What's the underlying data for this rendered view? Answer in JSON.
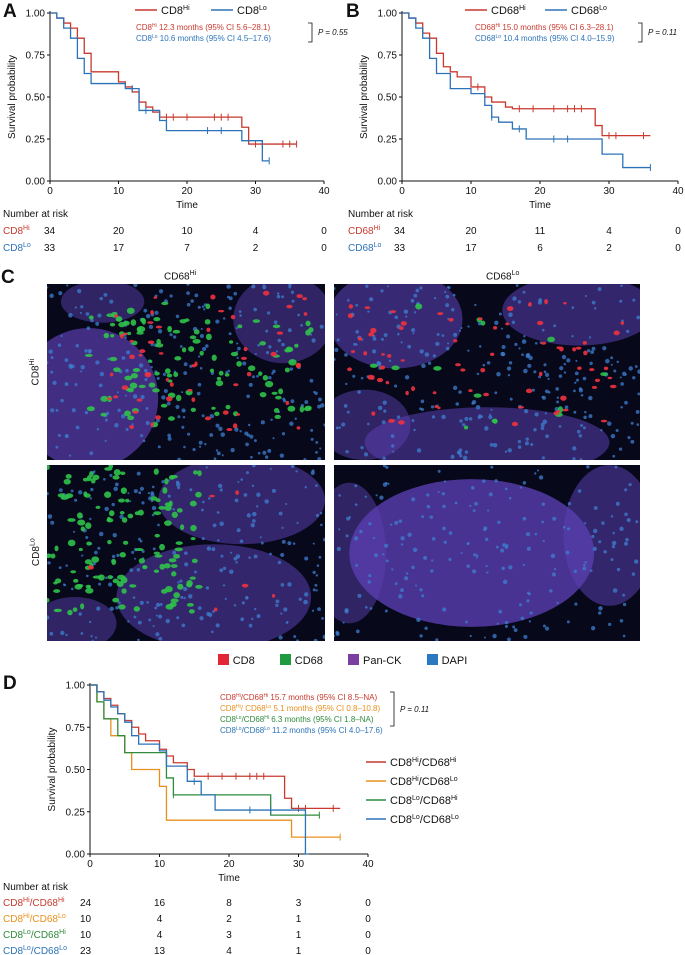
{
  "panels": {
    "A": {
      "letter": "A",
      "xlabel": "Time",
      "ylabel": "Survival probability",
      "xticks": [
        "0",
        "10",
        "20",
        "30",
        "40"
      ],
      "yticks": [
        "0.00",
        "0.25",
        "0.50",
        "0.75",
        "1.00"
      ],
      "legend": [
        {
          "base": "CD8",
          "sup": "Hi",
          "color": "#c9392e"
        },
        {
          "base": "CD8",
          "sup": "Lo",
          "color": "#2b73b9"
        }
      ],
      "annotations": [
        {
          "base": "CD8",
          "sup": "Hi",
          "text": " 12.3 months (95% CI 5.6–28.1)",
          "color": "#c9392e"
        },
        {
          "base": "CD8",
          "sup": "Lo",
          "text": " 10.6 months (95% CI 4.5–17.6)",
          "color": "#2b73b9"
        }
      ],
      "pvalue": "P = 0.55",
      "risk_title": "Number at risk",
      "risk_rows": [
        {
          "base": "CD8",
          "sup": "Hi",
          "color": "#c9392e",
          "values": [
            "34",
            "20",
            "10",
            "4",
            "0"
          ]
        },
        {
          "base": "CD8",
          "sup": "Lo",
          "color": "#2b73b9",
          "values": [
            "33",
            "17",
            "7",
            "2",
            "0"
          ]
        }
      ]
    },
    "B": {
      "letter": "B",
      "xlabel": "Time",
      "ylabel": "Survival probability",
      "xticks": [
        "0",
        "10",
        "20",
        "30",
        "40"
      ],
      "yticks": [
        "0.00",
        "0.25",
        "0.50",
        "0.75",
        "1.00"
      ],
      "legend": [
        {
          "base": "CD68",
          "sup": "Hi",
          "color": "#c9392e"
        },
        {
          "base": "CD68",
          "sup": "Lo",
          "color": "#2b73b9"
        }
      ],
      "annotations": [
        {
          "base": "CD68",
          "sup": "Hi",
          "text": " 15.0 months (95% CI 6.3–28.1)",
          "color": "#c9392e"
        },
        {
          "base": "CD68",
          "sup": "Lo",
          "text": " 10.4 months (95% CI 4.0–15.9)",
          "color": "#2b73b9"
        }
      ],
      "pvalue": "P = 0.11",
      "risk_title": "Number at risk",
      "risk_rows": [
        {
          "base": "CD68",
          "sup": "Hi",
          "color": "#c9392e",
          "values": [
            "34",
            "20",
            "11",
            "4",
            "0"
          ]
        },
        {
          "base": "CD68",
          "sup": "Lo",
          "color": "#2b73b9",
          "values": [
            "33",
            "17",
            "6",
            "2",
            "0"
          ]
        }
      ]
    },
    "C": {
      "letter": "C",
      "col_labels": [
        {
          "base": "CD68",
          "sup": "Hi"
        },
        {
          "base": "CD68",
          "sup": "Lo"
        }
      ],
      "row_labels": [
        {
          "base": "CD8",
          "sup": "Hi"
        },
        {
          "base": "CD8",
          "sup": "Lo"
        }
      ],
      "legend": [
        {
          "label": "CD8",
          "color": "#e32636"
        },
        {
          "label": "CD68",
          "color": "#1f9a3f"
        },
        {
          "label": "Pan-CK",
          "color": "#7b3fa0"
        },
        {
          "label": "DAPI",
          "color": "#2a78c2"
        }
      ]
    },
    "D": {
      "letter": "D",
      "xlabel": "Time",
      "ylabel": "Survival probability",
      "xticks": [
        "0",
        "10",
        "20",
        "30",
        "40"
      ],
      "yticks": [
        "0.00",
        "0.25",
        "0.50",
        "0.75",
        "1.00"
      ],
      "annotations": [
        {
          "label": "CD8Hi/CD68Hi",
          "text": " 15.7 months (95% CI 8.5–NA)",
          "color": "#c9392e"
        },
        {
          "label": "CD8Hi/ CD68Lo",
          "text": " 5.1 months (95% CI 0.8–10.8)",
          "color": "#e8901f"
        },
        {
          "label": "CD8Lo/CD68Hi",
          "text": " 6.3 months (95% CI 1.8–NA)",
          "color": "#2f8a3c"
        },
        {
          "label": "CD8Lo/CD68Lo",
          "text": " 11.2 months (95% CI 4.0–17.6)",
          "color": "#2b73b9"
        }
      ],
      "pvalue": "P = 0.11",
      "legend": [
        {
          "label": "CD8Hi/CD68Hi",
          "color": "#c9392e"
        },
        {
          "label": "CD8Hi/CD68Lo",
          "color": "#e8901f"
        },
        {
          "label": "CD8Lo/CD68Hi",
          "color": "#2f8a3c"
        },
        {
          "label": "CD8Lo/CD68Lo",
          "color": "#2b73b9"
        }
      ],
      "risk_title": "Number at risk",
      "risk_rows": [
        {
          "label": "CD8Hi/CD68Hi",
          "color": "#c9392e",
          "values": [
            "24",
            "16",
            "8",
            "3",
            "0"
          ]
        },
        {
          "label": "CD8Hi/CD68Lo",
          "color": "#e8901f",
          "values": [
            "10",
            "4",
            "2",
            "1",
            "0"
          ]
        },
        {
          "label": "CD8Lo/CD68Hi",
          "color": "#2f8a3c",
          "values": [
            "10",
            "4",
            "3",
            "1",
            "0"
          ]
        },
        {
          "label": "CD8Lo/CD68Lo",
          "color": "#2b73b9",
          "values": [
            "23",
            "13",
            "4",
            "1",
            "0"
          ]
        }
      ]
    }
  },
  "chart_data": [
    {
      "type": "line",
      "panel": "A",
      "xlabel": "Time",
      "ylabel": "Survival probability",
      "xlim": [
        0,
        40
      ],
      "ylim": [
        0,
        1
      ],
      "step": true,
      "legend_position": "top",
      "series": [
        {
          "name": "CD8Hi",
          "color": "#c9392e",
          "x": [
            0,
            1,
            2,
            3,
            4,
            5,
            6,
            8,
            10,
            11,
            12,
            13,
            14,
            15,
            16,
            28,
            29,
            36
          ],
          "y": [
            1.0,
            0.97,
            0.94,
            0.91,
            0.85,
            0.76,
            0.65,
            0.65,
            0.59,
            0.56,
            0.53,
            0.47,
            0.44,
            0.41,
            0.38,
            0.32,
            0.22,
            0.22
          ],
          "censored_x": [
            17,
            18,
            20,
            24,
            25,
            26,
            30,
            31,
            34,
            35,
            36
          ],
          "censored_y": [
            0.38,
            0.38,
            0.38,
            0.38,
            0.38,
            0.38,
            0.22,
            0.22,
            0.22,
            0.22,
            0.22
          ]
        },
        {
          "name": "CD8Lo",
          "color": "#2b73b9",
          "x": [
            0,
            1,
            2,
            3,
            4,
            5,
            6,
            8,
            11,
            13,
            16,
            17,
            26,
            27,
            28,
            31,
            32
          ],
          "y": [
            1.0,
            0.97,
            0.91,
            0.85,
            0.73,
            0.64,
            0.58,
            0.58,
            0.55,
            0.42,
            0.36,
            0.3,
            0.3,
            0.3,
            0.24,
            0.12,
            0.12
          ],
          "censored_x": [
            12,
            14,
            23,
            25,
            32
          ],
          "censored_y": [
            0.55,
            0.42,
            0.3,
            0.3,
            0.12
          ]
        }
      ],
      "annotations": [
        "CD8Hi 12.3 months (95% CI 5.6–28.1)",
        "CD8Lo 10.6 months (95% CI 4.5–17.6)",
        "P = 0.55"
      ]
    },
    {
      "type": "line",
      "panel": "B",
      "xlabel": "Time",
      "ylabel": "Survival probability",
      "xlim": [
        0,
        40
      ],
      "ylim": [
        0,
        1
      ],
      "step": true,
      "legend_position": "top",
      "series": [
        {
          "name": "CD68Hi",
          "color": "#c9392e",
          "x": [
            0,
            1,
            2,
            3,
            4,
            5,
            6,
            7,
            8,
            10,
            12,
            13,
            15,
            16,
            28,
            29,
            36
          ],
          "y": [
            1.0,
            0.97,
            0.94,
            0.88,
            0.85,
            0.76,
            0.68,
            0.65,
            0.62,
            0.56,
            0.5,
            0.47,
            0.44,
            0.43,
            0.33,
            0.27,
            0.27
          ],
          "censored_x": [
            11,
            17,
            19,
            22,
            24,
            25,
            26,
            30,
            31,
            35
          ],
          "censored_y": [
            0.56,
            0.43,
            0.43,
            0.43,
            0.43,
            0.43,
            0.43,
            0.27,
            0.27,
            0.27
          ]
        },
        {
          "name": "CD68Lo",
          "color": "#2b73b9",
          "x": [
            0,
            1,
            2,
            3,
            4,
            5,
            7,
            10,
            12,
            13,
            14,
            16,
            18,
            28,
            29,
            31,
            32,
            36
          ],
          "y": [
            1.0,
            0.97,
            0.91,
            0.85,
            0.73,
            0.64,
            0.55,
            0.52,
            0.45,
            0.38,
            0.35,
            0.31,
            0.25,
            0.25,
            0.16,
            0.16,
            0.08,
            0.08
          ],
          "censored_x": [
            13,
            17,
            22,
            24,
            36
          ],
          "censored_y": [
            0.38,
            0.31,
            0.25,
            0.25,
            0.08
          ]
        }
      ],
      "annotations": [
        "CD68Hi 15.0 months (95% CI 6.3–28.1)",
        "CD68Lo 10.4 months (95% CI 4.0–15.9)",
        "P = 0.11"
      ]
    },
    {
      "type": "line",
      "panel": "D",
      "xlabel": "Time",
      "ylabel": "Survival probability",
      "xlim": [
        0,
        40
      ],
      "ylim": [
        0,
        1
      ],
      "step": true,
      "legend_position": "right",
      "series": [
        {
          "name": "CD8Hi/CD68Hi",
          "color": "#c9392e",
          "x": [
            0,
            1,
            2,
            3,
            4,
            5,
            6,
            7,
            8,
            10,
            11,
            12,
            14,
            15,
            16,
            28,
            29,
            36
          ],
          "y": [
            1.0,
            0.96,
            0.92,
            0.88,
            0.83,
            0.79,
            0.75,
            0.71,
            0.67,
            0.62,
            0.58,
            0.54,
            0.5,
            0.46,
            0.46,
            0.33,
            0.27,
            0.27
          ],
          "censored_x": [
            17,
            19,
            21,
            23,
            24,
            25,
            30,
            31,
            35
          ],
          "censored_y": [
            0.46,
            0.46,
            0.46,
            0.46,
            0.46,
            0.46,
            0.27,
            0.27,
            0.27
          ]
        },
        {
          "name": "CD8Hi/CD68Lo",
          "color": "#e8901f",
          "x": [
            0,
            1,
            2,
            3,
            5,
            6,
            10,
            11,
            28,
            29,
            36
          ],
          "y": [
            1.0,
            0.9,
            0.8,
            0.7,
            0.6,
            0.5,
            0.4,
            0.2,
            0.2,
            0.1,
            0.1
          ],
          "censored_x": [
            36
          ],
          "censored_y": [
            0.1
          ]
        },
        {
          "name": "CD8Lo/CD68Hi",
          "color": "#2f8a3c",
          "x": [
            0,
            1,
            2,
            3,
            4,
            5,
            11,
            12,
            26,
            33
          ],
          "y": [
            1.0,
            0.9,
            0.8,
            0.8,
            0.7,
            0.6,
            0.45,
            0.35,
            0.23,
            0.23
          ],
          "censored_x": [
            12,
            33
          ],
          "censored_y": [
            0.35,
            0.23
          ]
        },
        {
          "name": "CD8Lo/CD68Lo",
          "color": "#2b73b9",
          "x": [
            0,
            1,
            2,
            3,
            4,
            5,
            6,
            7,
            10,
            11,
            14,
            16,
            18,
            28,
            31,
            31.5
          ],
          "y": [
            1.0,
            0.96,
            0.91,
            0.87,
            0.83,
            0.78,
            0.7,
            0.65,
            0.61,
            0.52,
            0.43,
            0.35,
            0.26,
            0.26,
            0.0,
            0.0
          ],
          "censored_x": [
            15,
            23,
            26
          ],
          "censored_y": [
            0.43,
            0.26,
            0.26
          ]
        }
      ],
      "annotations": [
        "CD8Hi/CD68Hi 15.7 months (95% CI 8.5–NA)",
        "CD8Hi/ CD68Lo 5.1 months (95% CI 0.8–10.8)",
        "CD8Lo/CD68Hi 6.3 months (95% CI 1.8–NA)",
        "CD8Lo/CD68Lo 11.2 months (95% CI 4.0–17.6)",
        "P = 0.11"
      ]
    }
  ]
}
